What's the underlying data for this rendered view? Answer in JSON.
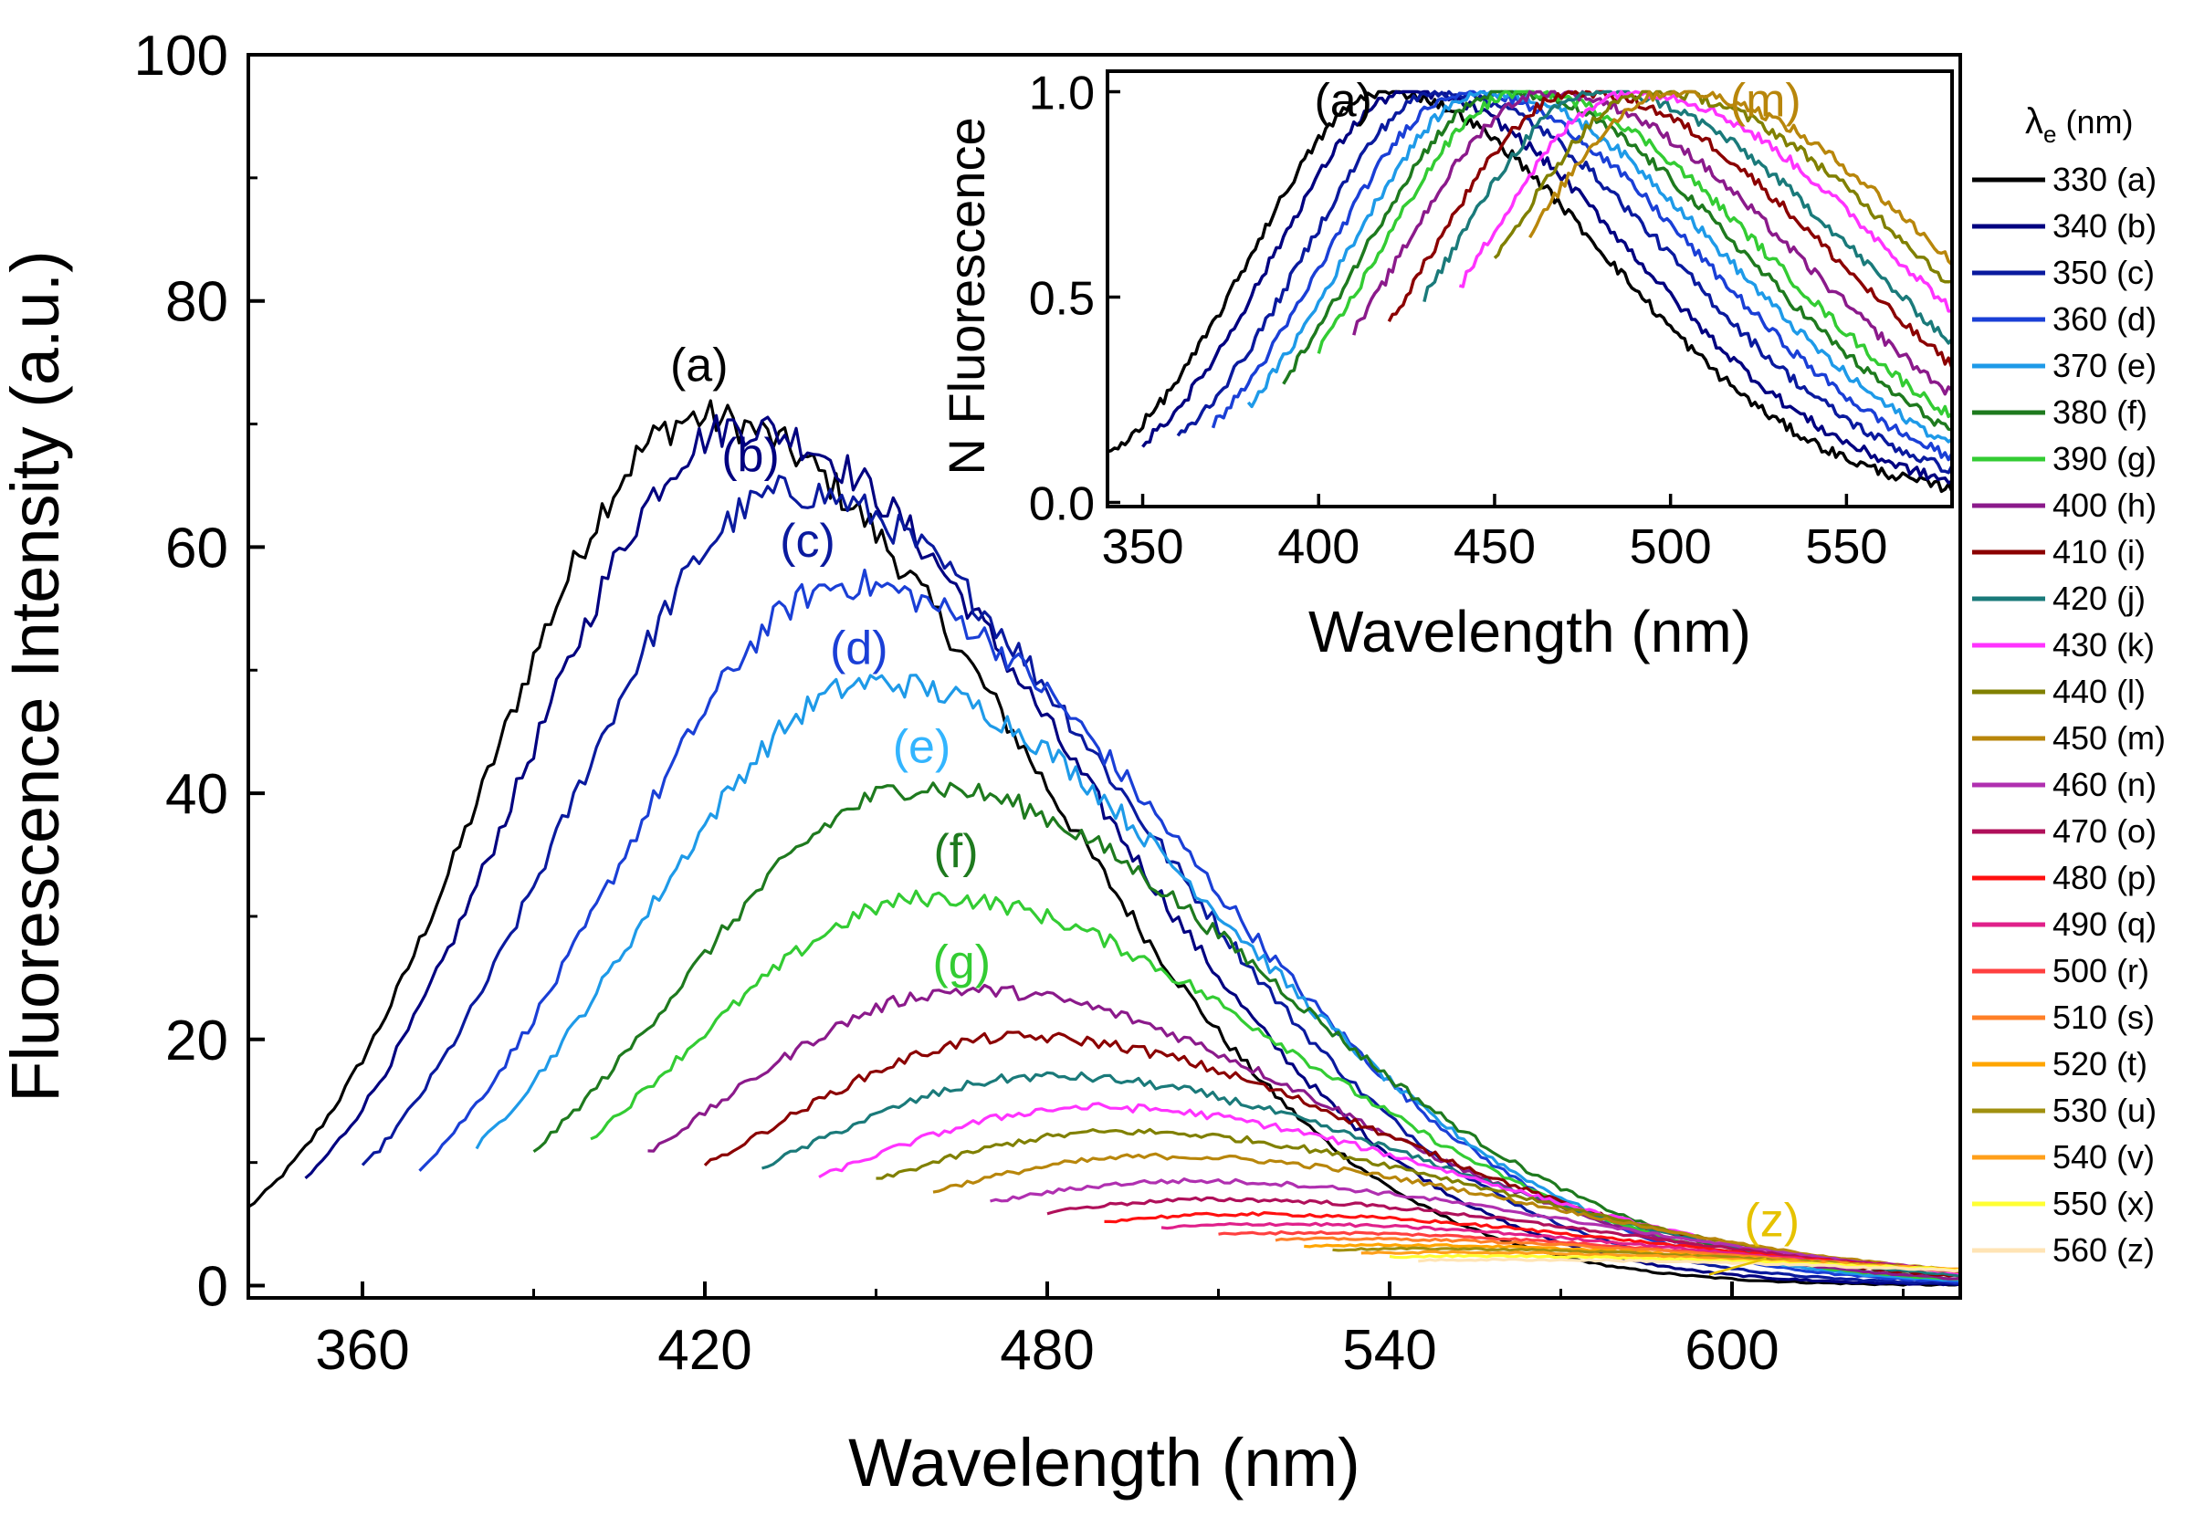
{
  "chart_data": [
    {
      "id": "main",
      "type": "line",
      "title": "",
      "xlabel": "Wavelength (nm)",
      "ylabel": "Fluorescence Intensity (a.u.)",
      "xlim": [
        340,
        640
      ],
      "ylim": [
        -1,
        100
      ],
      "xticks": [
        360,
        420,
        480,
        540,
        600
      ],
      "xticks_minor": [
        390,
        450,
        510,
        570,
        630
      ],
      "yticks": [
        0,
        20,
        40,
        60,
        80,
        100
      ],
      "yticks_minor": [
        10,
        30,
        50,
        70,
        90
      ],
      "grid": false,
      "series": [
        {
          "name": "330 (a)",
          "color": "#000000",
          "start": 340,
          "peak_x": 419,
          "peak_y": 70.5
        },
        {
          "name": "340 (b)",
          "color": "#000080",
          "start": 350,
          "peak_x": 426,
          "peak_y": 69.8
        },
        {
          "name": "350 (c)",
          "color": "#0a1a9e",
          "start": 360,
          "peak_x": 435,
          "peak_y": 64.5
        },
        {
          "name": "360 (d)",
          "color": "#1a3fd6",
          "start": 370,
          "peak_x": 445,
          "peak_y": 57.0
        },
        {
          "name": "370 (e)",
          "color": "#1e9ae8",
          "start": 380,
          "peak_x": 450,
          "peak_y": 49.0
        },
        {
          "name": "380 (f)",
          "color": "#1e7a1e",
          "start": 390,
          "peak_x": 458,
          "peak_y": 40.5
        },
        {
          "name": "390 (g)",
          "color": "#33cc33",
          "start": 400,
          "peak_x": 460,
          "peak_y": 31.5
        },
        {
          "name": "400 (h)",
          "color": "#8b1a8b",
          "start": 410,
          "peak_x": 466,
          "peak_y": 24.0
        },
        {
          "name": "410 (i)",
          "color": "#8b0000",
          "start": 420,
          "peak_x": 475,
          "peak_y": 20.2
        },
        {
          "name": "420 (j)",
          "color": "#1a7a7a",
          "start": 430,
          "peak_x": 480,
          "peak_y": 17.0
        },
        {
          "name": "430 (k)",
          "color": "#ff33ff",
          "start": 440,
          "peak_x": 488,
          "peak_y": 14.5
        },
        {
          "name": "440 (l)",
          "color": "#808000",
          "start": 450,
          "peak_x": 493,
          "peak_y": 12.5
        },
        {
          "name": "450 (m)",
          "color": "#b8860b",
          "start": 460,
          "peak_x": 500,
          "peak_y": 10.5
        },
        {
          "name": "460 (n)",
          "color": "#b030b0",
          "start": 470,
          "peak_x": 505,
          "peak_y": 8.5
        },
        {
          "name": "470 (o)",
          "color": "#b0105a",
          "start": 480,
          "peak_x": 510,
          "peak_y": 7.0
        },
        {
          "name": "480 (p)",
          "color": "#ff1010",
          "start": 490,
          "peak_x": 515,
          "peak_y": 5.8
        },
        {
          "name": "490 (q)",
          "color": "#e0208a",
          "start": 500,
          "peak_x": 520,
          "peak_y": 5.0
        },
        {
          "name": "500 (r)",
          "color": "#ff4040",
          "start": 510,
          "peak_x": 525,
          "peak_y": 4.3
        },
        {
          "name": "510 (s)",
          "color": "#ff7f27",
          "start": 520,
          "peak_x": 532,
          "peak_y": 3.8
        },
        {
          "name": "520 (t)",
          "color": "#ffa500",
          "start": 525,
          "peak_x": 538,
          "peak_y": 3.3
        },
        {
          "name": "530 (u)",
          "color": "#a09010",
          "start": 530,
          "peak_x": 545,
          "peak_y": 3.0
        },
        {
          "name": "540 (v)",
          "color": "#ff9f1a",
          "start": 535,
          "peak_x": 550,
          "peak_y": 2.7
        },
        {
          "name": "550 (x)",
          "color": "#ffff33",
          "start": 540,
          "peak_x": 555,
          "peak_y": 2.4
        },
        {
          "name": "560 (z)",
          "color": "#ffe4b5",
          "start": 545,
          "peak_x": 560,
          "peak_y": 2.1
        }
      ],
      "annotations": [
        {
          "text": "(a)",
          "x": 419,
          "y": 73.5,
          "color": "#000000"
        },
        {
          "text": "(b)",
          "x": 428,
          "y": 66.2,
          "color": "#000080"
        },
        {
          "text": "(c)",
          "x": 438,
          "y": 59.2,
          "color": "#0a1a9e"
        },
        {
          "text": "(d)",
          "x": 447,
          "y": 50.5,
          "color": "#1a3fd6"
        },
        {
          "text": "(e)",
          "x": 458,
          "y": 42.5,
          "color": "#33b5ff"
        },
        {
          "text": "(f)",
          "x": 464,
          "y": 34.0,
          "color": "#1e7a1e"
        },
        {
          "text": "(g)",
          "x": 465,
          "y": 25.0,
          "color": "#33cc33"
        },
        {
          "text": "(z)",
          "x": 607,
          "y": 4.0,
          "color": "#e6c200"
        }
      ]
    },
    {
      "id": "inset",
      "type": "line",
      "title": "",
      "xlabel": "Wavelength (nm)",
      "ylabel": "N Fluorescence",
      "xlim": [
        340,
        580
      ],
      "ylim": [
        -0.01,
        1.05
      ],
      "xticks": [
        350,
        400,
        450,
        500,
        550
      ],
      "yticks": [
        0.0,
        0.5,
        1.0
      ],
      "ytick_labels": [
        "0.0",
        "0.5",
        "1.0"
      ],
      "grid": false,
      "series": [
        {
          "name": "(a)",
          "color": "#000000",
          "start": 340,
          "peak": 419
        },
        {
          "name": "(b)",
          "color": "#000080",
          "start": 350,
          "peak": 426
        },
        {
          "name": "(c)",
          "color": "#0a1a9e",
          "start": 360,
          "peak": 435
        },
        {
          "name": "(d)",
          "color": "#1a3fd6",
          "start": 370,
          "peak": 442
        },
        {
          "name": "(e)",
          "color": "#1e9ae8",
          "start": 380,
          "peak": 448
        },
        {
          "name": "(f)",
          "color": "#1e7a1e",
          "start": 390,
          "peak": 453
        },
        {
          "name": "(g)",
          "color": "#33cc33",
          "start": 400,
          "peak": 458
        },
        {
          "name": "(h)",
          "color": "#8b1a8b",
          "start": 410,
          "peak": 465
        },
        {
          "name": "(i)",
          "color": "#8b0000",
          "start": 420,
          "peak": 474
        },
        {
          "name": "(j)",
          "color": "#1a7a7a",
          "start": 430,
          "peak": 480
        },
        {
          "name": "(k)",
          "color": "#ff33ff",
          "start": 440,
          "peak": 489
        },
        {
          "name": "(l)",
          "color": "#808000",
          "start": 450,
          "peak": 495
        },
        {
          "name": "(m)",
          "color": "#b8860b",
          "start": 460,
          "peak": 501
        }
      ],
      "annotations": [
        {
          "text": "(a)",
          "x": 407,
          "y": 0.94,
          "color": "#000000"
        },
        {
          "text": "(m)",
          "x": 527,
          "y": 0.94,
          "color": "#b8860b"
        }
      ]
    }
  ],
  "legend": {
    "title_symbol": "λ",
    "title_subscript": "e",
    "title_unit": " (nm)",
    "placement": "right"
  }
}
